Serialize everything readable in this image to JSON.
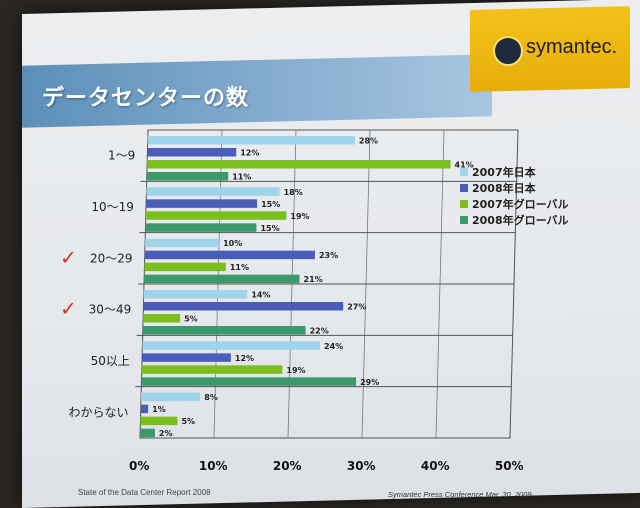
{
  "slide": {
    "title": "データセンターの数",
    "logo_text": "symantec.",
    "footer_left": "State of the Data Center Report 2008",
    "footer_right": "Symantec Press Conference Mar. 30, 2009",
    "check_mark": "✓"
  },
  "chart_data": {
    "type": "bar",
    "orientation": "horizontal",
    "categories": [
      "1～9",
      "10～19",
      "20～29",
      "30～49",
      "50以上",
      "わからない"
    ],
    "checked_categories": [
      "20～29",
      "30～49"
    ],
    "series": [
      {
        "name": "2007年日本",
        "color": "#9fd4ec",
        "values": [
          28,
          18,
          10,
          14,
          24,
          8
        ]
      },
      {
        "name": "2008年日本",
        "color": "#4a5db8",
        "values": [
          12,
          15,
          23,
          27,
          12,
          1
        ]
      },
      {
        "name": "2007年グローバル",
        "color": "#7bbf1f",
        "values": [
          41,
          19,
          11,
          5,
          19,
          5
        ]
      },
      {
        "name": "2008年グローバル",
        "color": "#3a9a6a",
        "values": [
          11,
          15,
          21,
          22,
          29,
          2
        ]
      }
    ],
    "value_suffix": "%",
    "xlim": [
      0,
      50
    ],
    "xticks": [
      "0%",
      "10%",
      "20%",
      "30%",
      "40%",
      "50%"
    ],
    "grid": true,
    "legend_position": "right"
  }
}
